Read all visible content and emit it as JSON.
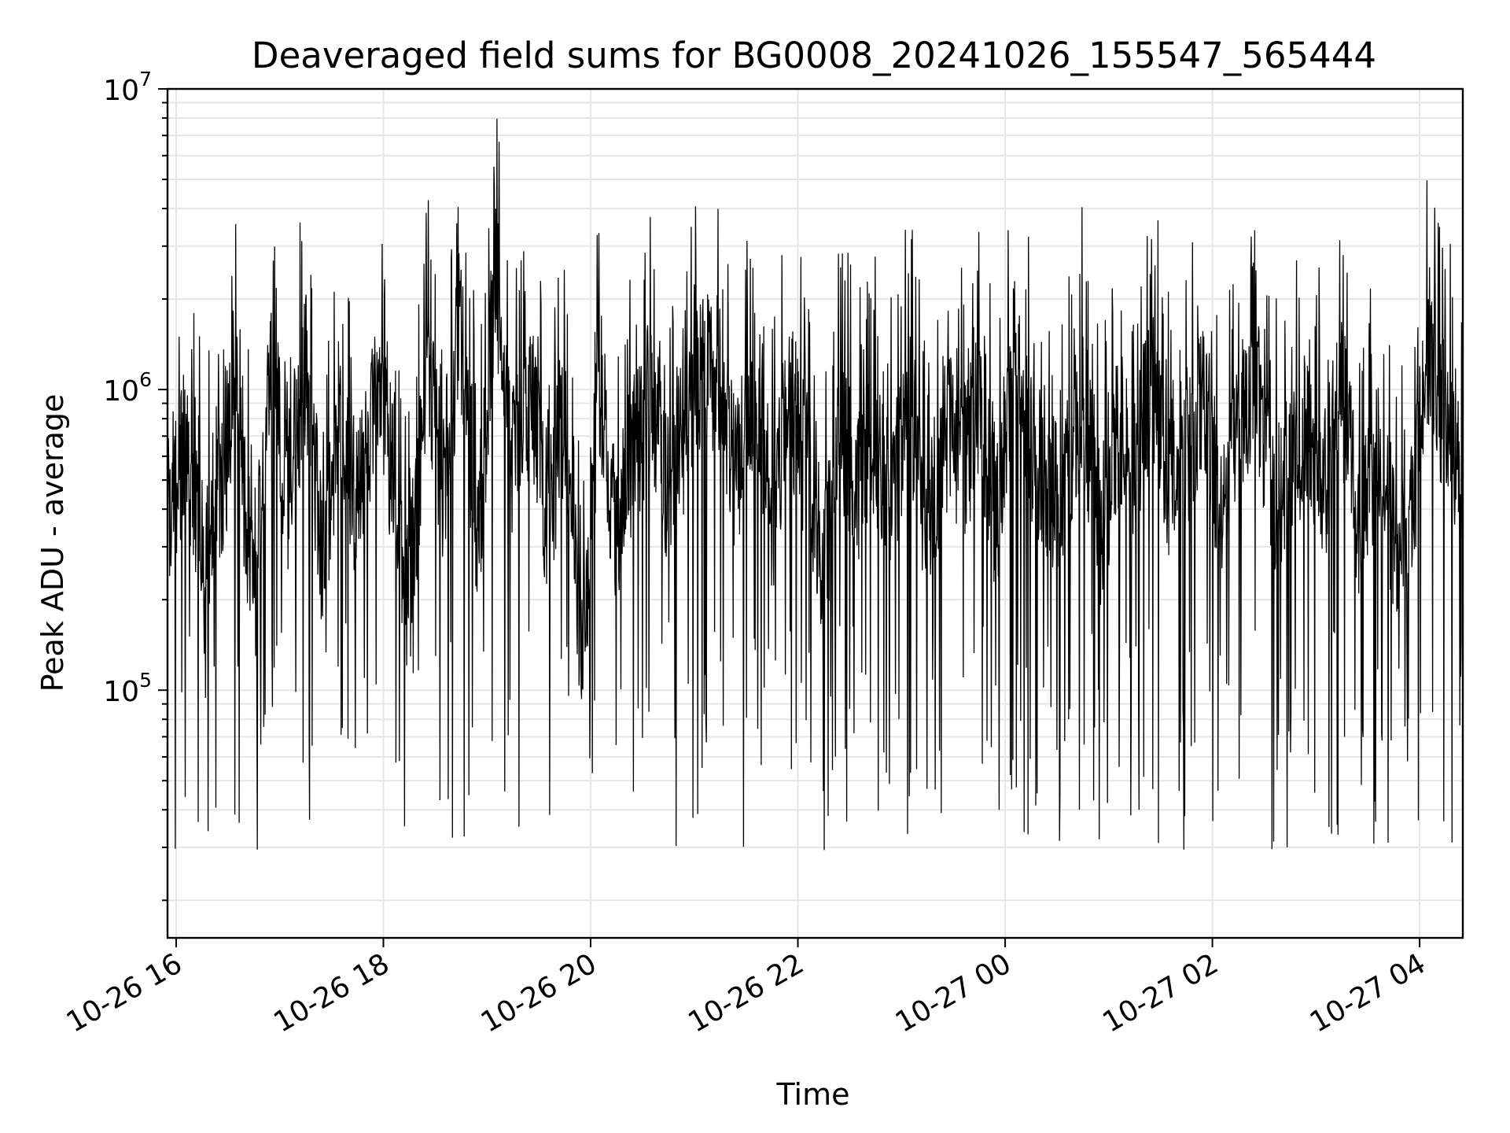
{
  "chart_data": {
    "type": "line",
    "title": "Deaveraged field sums for BG0008_20241026_155547_565444",
    "xlabel": "Time",
    "ylabel": "Peak ADU - average",
    "y_scale": "log",
    "ylim": [
      15000,
      10000000
    ],
    "xlim": [
      "2024-10-26T15:55",
      "2024-10-27T04:25"
    ],
    "grid": true,
    "x_ticks": [
      {
        "value": "2024-10-26T16:00",
        "label": "10-26 16"
      },
      {
        "value": "2024-10-26T18:00",
        "label": "10-26 18"
      },
      {
        "value": "2024-10-26T20:00",
        "label": "10-26 20"
      },
      {
        "value": "2024-10-26T22:00",
        "label": "10-26 22"
      },
      {
        "value": "2024-10-27T00:00",
        "label": "10-27 00"
      },
      {
        "value": "2024-10-27T02:00",
        "label": "10-27 02"
      },
      {
        "value": "2024-10-27T04:00",
        "label": "10-27 04"
      }
    ],
    "y_ticks": [
      {
        "value": 100000,
        "base": "10",
        "exponent": "5"
      },
      {
        "value": 1000000,
        "base": "10",
        "exponent": "6"
      },
      {
        "value": 10000000,
        "base": "10",
        "exponent": "7"
      }
    ],
    "line_color": "#000000",
    "series": [
      {
        "x": [
          "2024-10-26T15:55",
          "2024-10-26T16:05",
          "2024-10-26T16:15",
          "2024-10-26T16:25",
          "2024-10-26T16:35",
          "2024-10-26T16:45",
          "2024-10-26T16:55",
          "2024-10-26T17:05",
          "2024-10-26T17:15",
          "2024-10-26T17:25",
          "2024-10-26T17:35",
          "2024-10-26T17:45",
          "2024-10-26T17:55",
          "2024-10-26T18:05",
          "2024-10-26T18:15",
          "2024-10-26T18:25",
          "2024-10-26T18:35",
          "2024-10-26T18:45",
          "2024-10-26T18:55",
          "2024-10-26T19:05",
          "2024-10-26T19:15",
          "2024-10-26T19:25",
          "2024-10-26T19:35",
          "2024-10-26T19:45",
          "2024-10-26T19:55",
          "2024-10-26T20:05",
          "2024-10-26T20:15",
          "2024-10-26T20:25",
          "2024-10-26T20:35",
          "2024-10-26T20:45",
          "2024-10-26T20:55",
          "2024-10-26T21:05",
          "2024-10-26T21:15",
          "2024-10-26T21:25",
          "2024-10-26T21:35",
          "2024-10-26T21:45",
          "2024-10-26T21:55",
          "2024-10-26T22:05",
          "2024-10-26T22:15",
          "2024-10-26T22:25",
          "2024-10-26T22:35",
          "2024-10-26T22:45",
          "2024-10-26T22:55",
          "2024-10-26T23:05",
          "2024-10-26T23:15",
          "2024-10-26T23:25",
          "2024-10-26T23:35",
          "2024-10-26T23:45",
          "2024-10-26T23:55",
          "2024-10-27T00:05",
          "2024-10-27T00:15",
          "2024-10-27T00:25",
          "2024-10-27T00:35",
          "2024-10-27T00:45",
          "2024-10-27T00:55",
          "2024-10-27T01:05",
          "2024-10-27T01:15",
          "2024-10-27T01:25",
          "2024-10-27T01:35",
          "2024-10-27T01:45",
          "2024-10-27T01:55",
          "2024-10-27T02:05",
          "2024-10-27T02:15",
          "2024-10-27T02:25",
          "2024-10-27T02:35",
          "2024-10-27T02:45",
          "2024-10-27T02:55",
          "2024-10-27T03:05",
          "2024-10-27T03:15",
          "2024-10-27T03:25",
          "2024-10-27T03:35",
          "2024-10-27T03:45",
          "2024-10-27T03:55",
          "2024-10-27T04:05",
          "2024-10-27T04:15",
          "2024-10-27T04:25"
        ],
        "y": [
          650000,
          1000000,
          500000,
          700000,
          1500000,
          300000,
          1800000,
          700000,
          2000000,
          400000,
          1200000,
          600000,
          1500000,
          900000,
          300000,
          1800000,
          700000,
          2500000,
          500000,
          4000000,
          900000,
          1500000,
          600000,
          1200000,
          200000,
          1800000,
          500000,
          1000000,
          1500000,
          700000,
          1200000,
          2000000,
          1400000,
          800000,
          1800000,
          600000,
          1500000,
          900000,
          400000,
          1200000,
          800000,
          1000000,
          700000,
          1500000,
          500000,
          1200000,
          900000,
          1300000,
          600000,
          2000000,
          1100000,
          700000,
          800000,
          1500000,
          500000,
          1200000,
          900000,
          1800000,
          800000,
          1000000,
          1500000,
          600000,
          1100000,
          1800000,
          700000,
          900000,
          1200000,
          800000,
          1500000,
          600000,
          1000000,
          500000,
          600000,
          2000000,
          1200000,
          900000
        ]
      }
    ]
  }
}
